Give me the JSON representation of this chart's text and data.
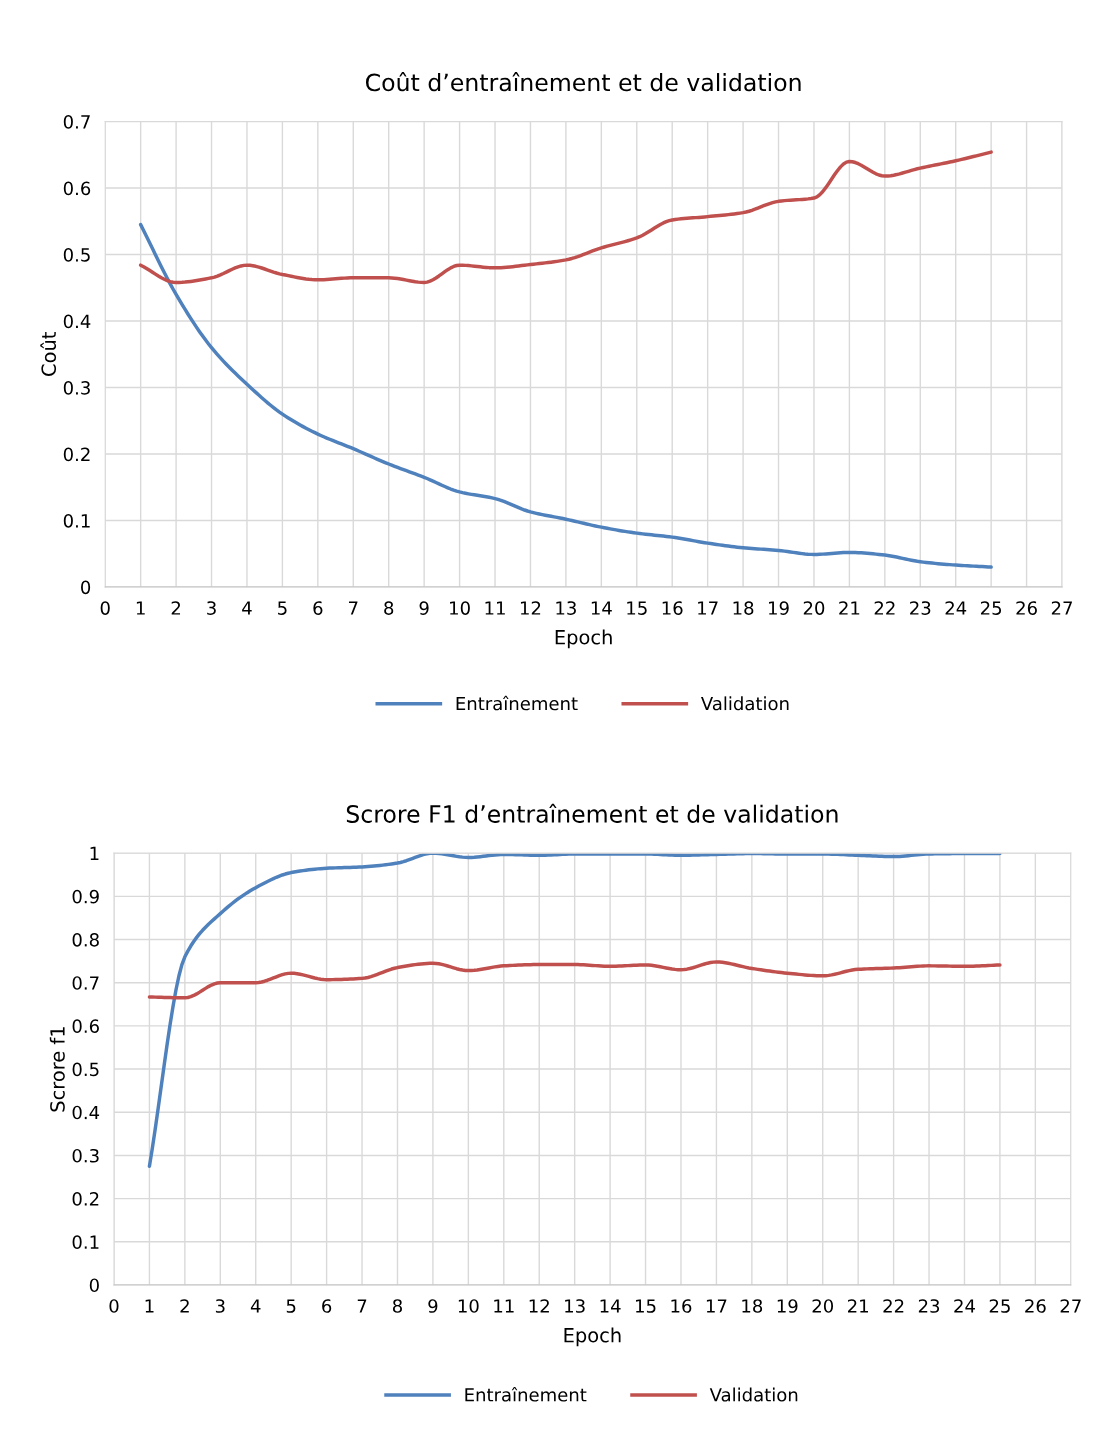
{
  "chart_data": [
    {
      "type": "line",
      "title": "Coût d’entraînement et de validation",
      "xlabel": "Epoch",
      "ylabel": "Coût",
      "xlim": [
        0,
        27
      ],
      "xticks": [
        0,
        1,
        2,
        3,
        4,
        5,
        6,
        7,
        8,
        9,
        10,
        11,
        12,
        13,
        14,
        15,
        16,
        17,
        18,
        19,
        20,
        21,
        22,
        23,
        24,
        25,
        26,
        27
      ],
      "ylim": [
        0,
        0.7
      ],
      "yticks": [
        0,
        0.1,
        0.2,
        0.3,
        0.4,
        0.5,
        0.6,
        0.7
      ],
      "x": [
        1,
        2,
        3,
        4,
        5,
        6,
        7,
        8,
        9,
        10,
        11,
        12,
        13,
        14,
        15,
        16,
        17,
        18,
        19,
        20,
        21,
        22,
        23,
        24,
        25
      ],
      "grid": true,
      "legend": "bottom",
      "marker": "none",
      "line_style": "solid",
      "series": [
        {
          "name": "Entraînement",
          "color": "#4f81bd",
          "values": [
            0.545,
            0.44,
            0.36,
            0.305,
            0.26,
            0.23,
            0.208,
            0.185,
            0.165,
            0.143,
            0.133,
            0.113,
            0.102,
            0.09,
            0.081,
            0.075,
            0.066,
            0.059,
            0.055,
            0.049,
            0.052,
            0.048,
            0.038,
            0.033,
            0.03
          ]
        },
        {
          "name": "Validation",
          "color": "#c0504d",
          "values": [
            0.484,
            0.458,
            0.465,
            0.484,
            0.47,
            0.462,
            0.465,
            0.465,
            0.458,
            0.484,
            0.48,
            0.485,
            0.492,
            0.51,
            0.525,
            0.552,
            0.557,
            0.563,
            0.58,
            0.585,
            0.64,
            0.618,
            0.63,
            0.641,
            0.654
          ]
        }
      ]
    },
    {
      "type": "line",
      "title": "Scrore F1 d’entraînement et de validation",
      "xlabel": "Epoch",
      "ylabel": "Scrore f1",
      "xlim": [
        0,
        27
      ],
      "xticks": [
        0,
        1,
        2,
        3,
        4,
        5,
        6,
        7,
        8,
        9,
        10,
        11,
        12,
        13,
        14,
        15,
        16,
        17,
        18,
        19,
        20,
        21,
        22,
        23,
        24,
        25,
        26,
        27
      ],
      "ylim": [
        0,
        1
      ],
      "yticks": [
        0,
        0.1,
        0.2,
        0.3,
        0.4,
        0.5,
        0.6,
        0.7,
        0.8,
        0.9,
        1
      ],
      "x": [
        1,
        2,
        3,
        4,
        5,
        6,
        7,
        8,
        9,
        10,
        11,
        12,
        13,
        14,
        15,
        16,
        17,
        18,
        19,
        20,
        21,
        22,
        23,
        24,
        25
      ],
      "grid": true,
      "legend": "bottom",
      "marker": "none",
      "line_style": "solid",
      "series": [
        {
          "name": "Entraînement",
          "color": "#4f81bd",
          "values": [
            0.275,
            0.76,
            0.86,
            0.92,
            0.955,
            0.965,
            0.968,
            0.977,
            1.0,
            0.99,
            0.997,
            0.995,
            0.998,
            0.998,
            0.998,
            0.995,
            0.997,
            0.999,
            0.998,
            0.998,
            0.995,
            0.992,
            0.998,
            0.999,
            0.999
          ]
        },
        {
          "name": "Validation",
          "color": "#c0504d",
          "values": [
            0.667,
            0.665,
            0.7,
            0.7,
            0.722,
            0.707,
            0.71,
            0.735,
            0.745,
            0.728,
            0.739,
            0.742,
            0.742,
            0.738,
            0.741,
            0.73,
            0.748,
            0.733,
            0.722,
            0.716,
            0.731,
            0.734,
            0.739,
            0.738,
            0.741
          ]
        }
      ]
    }
  ]
}
